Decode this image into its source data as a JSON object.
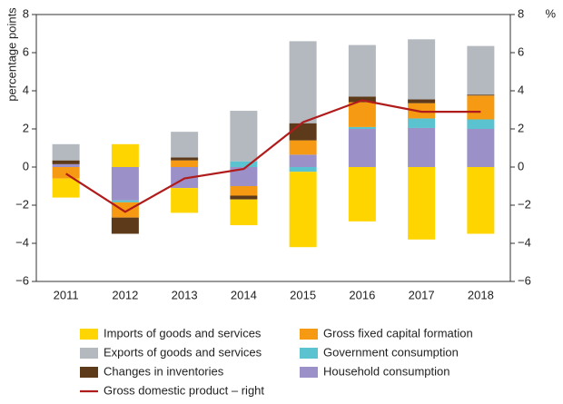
{
  "chart_data": {
    "type": "bar",
    "stacked": true,
    "y_label": "percentage points",
    "y2_label": "%",
    "categories": [
      "2011",
      "2012",
      "2013",
      "2014",
      "2015",
      "2016",
      "2017",
      "2018"
    ],
    "series": [
      {
        "name": "Imports of goods and services",
        "color": "#ffd500",
        "values": [
          -1.0,
          1.2,
          -1.3,
          -1.35,
          -3.95,
          -2.85,
          -3.8,
          -3.5
        ]
      },
      {
        "name": "Exports of goods and services",
        "color": "#b3b9bf",
        "values": [
          0.85,
          0,
          1.35,
          2.65,
          4.3,
          2.7,
          3.15,
          2.55
        ]
      },
      {
        "name": "Changes in inventories",
        "color": "#5c3a1a",
        "values": [
          0.2,
          -0.85,
          0.15,
          -0.2,
          0.9,
          0.3,
          0.2,
          0.05
        ]
      },
      {
        "name": "Gross fixed capital formation",
        "color": "#f59a12",
        "values": [
          -0.6,
          -0.8,
          0.35,
          -0.5,
          0.75,
          1.3,
          0.8,
          1.25
        ]
      },
      {
        "name": "Government consumption",
        "color": "#5bc2cf",
        "values": [
          0,
          -0.1,
          0,
          0.3,
          -0.25,
          0.1,
          0.5,
          0.5
        ]
      },
      {
        "name": "Household consumption",
        "color": "#9b90c8",
        "values": [
          0.15,
          -1.75,
          -1.1,
          -1.0,
          0.65,
          2.0,
          2.05,
          2.0
        ]
      },
      {
        "name": "Gross domestic product – right",
        "color": "#b01c1c",
        "type": "line",
        "axis": "y2",
        "values": [
          -0.35,
          -2.35,
          -0.6,
          -0.1,
          2.35,
          3.5,
          2.9,
          2.9
        ]
      }
    ],
    "ylim": [
      -6,
      8
    ],
    "yticks": [
      {
        "value": -6,
        "label": "−6"
      },
      {
        "value": -4,
        "label": "−4"
      },
      {
        "value": -2,
        "label": "−2"
      },
      0,
      2,
      4,
      6,
      8
    ],
    "y2lim": [
      -6,
      8
    ],
    "y2ticks": [
      {
        "value": -6,
        "label": "−6"
      },
      {
        "value": -4,
        "label": "−4"
      },
      {
        "value": -2,
        "label": "−2"
      },
      0,
      2,
      4,
      6,
      8
    ]
  }
}
